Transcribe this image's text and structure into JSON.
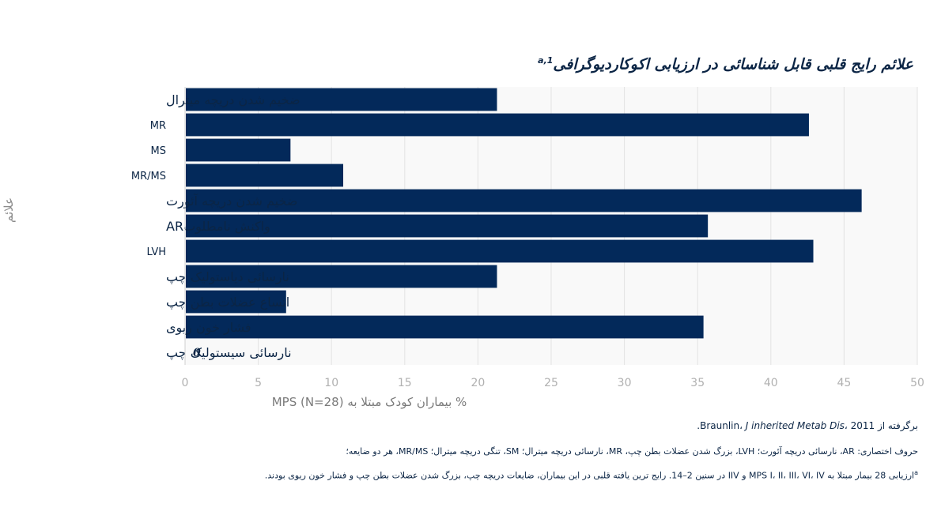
{
  "chart_data": {
    "type": "bar",
    "orientation": "horizontal",
    "title": "علائم رایج قلبی قابل شناسائی در ارزیابی اکوکاردیوگرافی",
    "title_superscript": "a,1",
    "categories": [
      "ضخیم شدن دریچه میترال",
      "MR",
      "MS",
      "MR/MS",
      "ضخیم شدن دریچه آئورت",
      "واکنش نامطلوبAR",
      "LVH",
      "نارسائی دیاستولیک چپ",
      "اتساع عضلات بطن چپ",
      "فشار خون ریوی",
      "نارسائی سیستولیک چپ"
    ],
    "values": [
      21.3,
      42.6,
      7.2,
      10.8,
      46.2,
      35.7,
      42.9,
      21.3,
      6.9,
      35.4,
      0
    ],
    "zero_label": "0",
    "xlabel": "% بیماران کودک مبتلا به MPS (N=28)",
    "ylabel": "علائم",
    "xlim": [
      0,
      50
    ],
    "xticks": [
      "0",
      "5",
      "10",
      "15",
      "20",
      "25",
      "30",
      "35",
      "40",
      "45",
      "50"
    ],
    "grid": true,
    "bar_color": "#03295a",
    "plot_bg": "#f9f9f9",
    "grid_color": "#e3e3e3"
  },
  "notes": {
    "source_prefix": "برگرفته از Braunlin، ",
    "source_journal": "J inherited Metab Dis",
    "source_suffix": "، 2011.",
    "abbreviations": "حروف اختصاری: AR، نارسائی دریچه آئورت؛ LVH، بزرگ شدن عضلات بطن چپ، MR، نارسائی دریچه میترال؛ SM، تنگی دریچه میترال؛ MR/MS، هر دو ضایعه؛",
    "footnote_mark": "a",
    "footnote": "ارزیابی 28 بیمار مبتلا به MPS I، II، III، VI، IV و IIV در سنین 2–14. رایج ترین یافته قلبی در این بیماران، ضایعات دریچه چپ، بزرگ شدن عضلات بطن چپ و فشار خون ریوی بودند."
  }
}
